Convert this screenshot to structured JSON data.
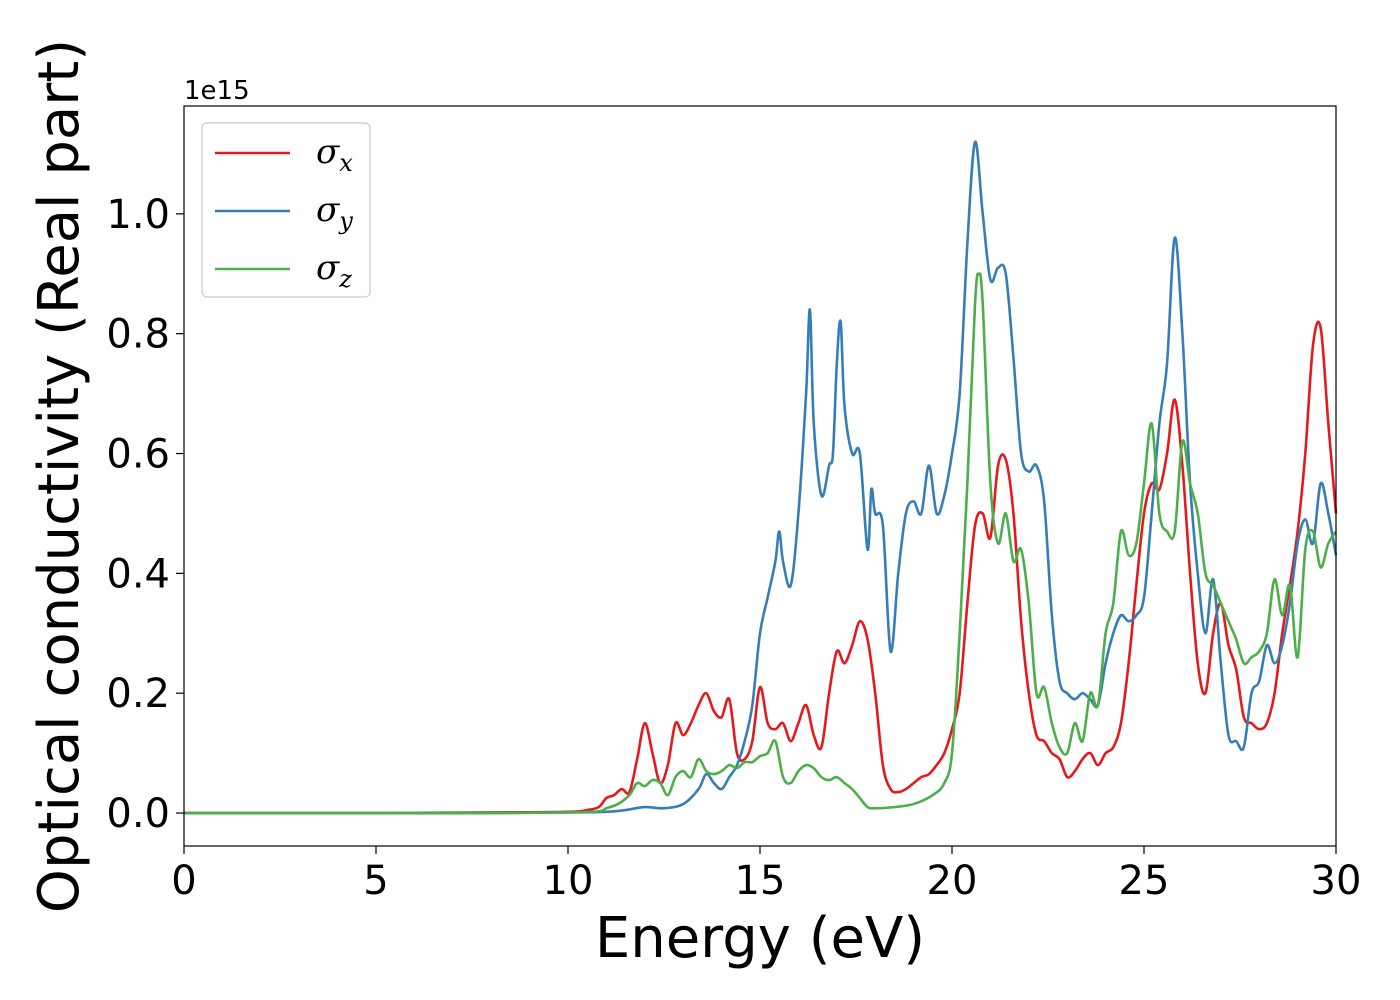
{
  "chart_data": {
    "type": "line",
    "title": "",
    "xlabel": "Energy (eV)",
    "ylabel": "Optical conductivity (Real part)",
    "y_offset_label": "1e15",
    "y_scale": 1000000000000000.0,
    "xlim": [
      0,
      30
    ],
    "ylim": [
      -0.055,
      1.18
    ],
    "x_ticks": [
      0,
      5,
      10,
      15,
      20,
      25,
      30
    ],
    "x_tick_labels": [
      "0",
      "5",
      "10",
      "15",
      "20",
      "25",
      "30"
    ],
    "y_ticks": [
      0.0,
      0.2,
      0.4,
      0.6,
      0.8,
      1.0
    ],
    "y_tick_labels": [
      "0.0",
      "0.2",
      "0.4",
      "0.6",
      "0.8",
      "1.0"
    ],
    "grid": false,
    "legend_position": "top-left",
    "series": [
      {
        "name": "σx",
        "symbol": "σ",
        "subscript": "x",
        "color": "#e41a1c",
        "x": [
          0,
          5,
          8,
          10,
          10.5,
          10.8,
          11.0,
          11.2,
          11.4,
          11.6,
          11.8,
          12.0,
          12.2,
          12.4,
          12.6,
          12.8,
          13.0,
          13.2,
          13.4,
          13.6,
          13.8,
          14.0,
          14.2,
          14.4,
          14.6,
          14.8,
          15.0,
          15.2,
          15.4,
          15.6,
          15.8,
          16.0,
          16.2,
          16.4,
          16.6,
          16.8,
          17.0,
          17.2,
          17.4,
          17.6,
          17.8,
          18.0,
          18.2,
          18.4,
          18.6,
          18.8,
          19.0,
          19.2,
          19.4,
          19.6,
          19.8,
          20.0,
          20.2,
          20.4,
          20.6,
          20.8,
          21.0,
          21.2,
          21.4,
          21.6,
          21.8,
          22.0,
          22.2,
          22.4,
          22.6,
          22.8,
          23.0,
          23.2,
          23.4,
          23.6,
          23.8,
          24.0,
          24.2,
          24.4,
          24.6,
          24.8,
          25.0,
          25.2,
          25.4,
          25.6,
          25.8,
          26.0,
          26.2,
          26.4,
          26.6,
          26.8,
          27.0,
          27.2,
          27.4,
          27.6,
          27.8,
          28.0,
          28.2,
          28.4,
          28.6,
          28.8,
          29.0,
          29.2,
          29.4,
          29.6,
          29.8,
          30.0
        ],
        "y": [
          0,
          0,
          0.001,
          0.002,
          0.005,
          0.01,
          0.025,
          0.03,
          0.04,
          0.035,
          0.09,
          0.15,
          0.1,
          0.05,
          0.08,
          0.15,
          0.13,
          0.15,
          0.18,
          0.2,
          0.17,
          0.16,
          0.19,
          0.1,
          0.09,
          0.12,
          0.21,
          0.15,
          0.14,
          0.15,
          0.12,
          0.15,
          0.18,
          0.13,
          0.11,
          0.2,
          0.27,
          0.25,
          0.28,
          0.32,
          0.29,
          0.2,
          0.08,
          0.04,
          0.035,
          0.04,
          0.05,
          0.06,
          0.065,
          0.08,
          0.1,
          0.14,
          0.2,
          0.35,
          0.48,
          0.5,
          0.46,
          0.58,
          0.59,
          0.5,
          0.32,
          0.2,
          0.13,
          0.12,
          0.1,
          0.09,
          0.06,
          0.07,
          0.09,
          0.1,
          0.08,
          0.1,
          0.11,
          0.15,
          0.25,
          0.38,
          0.5,
          0.55,
          0.54,
          0.6,
          0.69,
          0.58,
          0.4,
          0.25,
          0.2,
          0.3,
          0.35,
          0.28,
          0.24,
          0.16,
          0.15,
          0.14,
          0.15,
          0.2,
          0.3,
          0.38,
          0.47,
          0.6,
          0.78,
          0.81,
          0.65,
          0.5
        ]
      },
      {
        "name": "σy",
        "symbol": "σ",
        "subscript": "y",
        "color": "#377eb8",
        "x": [
          0,
          5,
          8,
          10,
          11.0,
          11.5,
          12.0,
          12.5,
          13.0,
          13.4,
          13.6,
          13.8,
          14.0,
          14.2,
          14.4,
          14.6,
          14.8,
          15.0,
          15.2,
          15.4,
          15.5,
          15.6,
          15.8,
          16.0,
          16.2,
          16.3,
          16.4,
          16.6,
          16.8,
          16.9,
          17.0,
          17.1,
          17.2,
          17.4,
          17.6,
          17.8,
          17.9,
          18.0,
          18.2,
          18.4,
          18.6,
          18.8,
          19.0,
          19.2,
          19.4,
          19.6,
          19.8,
          20.0,
          20.2,
          20.4,
          20.6,
          20.8,
          21.0,
          21.2,
          21.4,
          21.6,
          21.8,
          22.0,
          22.2,
          22.4,
          22.6,
          22.8,
          23.0,
          23.2,
          23.4,
          23.6,
          23.8,
          24.0,
          24.2,
          24.4,
          24.6,
          24.8,
          25.0,
          25.2,
          25.4,
          25.6,
          25.8,
          26.0,
          26.2,
          26.4,
          26.6,
          26.8,
          27.0,
          27.2,
          27.4,
          27.6,
          27.8,
          28.0,
          28.2,
          28.4,
          28.6,
          28.8,
          29.0,
          29.2,
          29.4,
          29.6,
          29.8,
          30.0
        ],
        "y": [
          0,
          0,
          0,
          0.001,
          0.002,
          0.005,
          0.01,
          0.008,
          0.015,
          0.04,
          0.065,
          0.05,
          0.04,
          0.06,
          0.08,
          0.12,
          0.18,
          0.3,
          0.36,
          0.42,
          0.47,
          0.42,
          0.38,
          0.5,
          0.7,
          0.84,
          0.65,
          0.53,
          0.58,
          0.6,
          0.75,
          0.82,
          0.68,
          0.6,
          0.6,
          0.44,
          0.54,
          0.5,
          0.48,
          0.27,
          0.4,
          0.5,
          0.52,
          0.5,
          0.58,
          0.5,
          0.53,
          0.6,
          0.7,
          0.95,
          1.12,
          1.0,
          0.89,
          0.91,
          0.9,
          0.76,
          0.6,
          0.57,
          0.58,
          0.52,
          0.33,
          0.22,
          0.2,
          0.19,
          0.2,
          0.19,
          0.18,
          0.25,
          0.3,
          0.33,
          0.32,
          0.33,
          0.36,
          0.5,
          0.65,
          0.75,
          0.96,
          0.8,
          0.55,
          0.4,
          0.3,
          0.39,
          0.25,
          0.13,
          0.12,
          0.11,
          0.2,
          0.22,
          0.28,
          0.25,
          0.28,
          0.35,
          0.45,
          0.49,
          0.45,
          0.55,
          0.5,
          0.43
        ]
      },
      {
        "name": "σz",
        "symbol": "σ",
        "subscript": "z",
        "color": "#4daf4a",
        "x": [
          0,
          5,
          8,
          10,
          10.8,
          11.0,
          11.3,
          11.6,
          11.8,
          12.0,
          12.2,
          12.4,
          12.6,
          12.8,
          13.0,
          13.2,
          13.4,
          13.6,
          13.8,
          14.0,
          14.2,
          14.4,
          14.6,
          14.8,
          15.0,
          15.2,
          15.4,
          15.6,
          15.8,
          16.0,
          16.2,
          16.4,
          16.6,
          16.8,
          17.0,
          17.2,
          17.4,
          17.6,
          17.8,
          18.0,
          18.5,
          19.0,
          19.5,
          19.8,
          20.0,
          20.2,
          20.4,
          20.6,
          20.7,
          20.8,
          21.0,
          21.2,
          21.4,
          21.6,
          21.8,
          22.0,
          22.2,
          22.4,
          22.6,
          22.8,
          23.0,
          23.2,
          23.4,
          23.6,
          23.8,
          24.0,
          24.2,
          24.4,
          24.6,
          24.8,
          25.0,
          25.2,
          25.4,
          25.6,
          25.8,
          26.0,
          26.2,
          26.4,
          26.6,
          26.8,
          27.0,
          27.2,
          27.4,
          27.6,
          27.8,
          28.0,
          28.2,
          28.4,
          28.6,
          28.8,
          29.0,
          29.2,
          29.4,
          29.6,
          29.8,
          30.0
        ],
        "y": [
          0,
          0,
          0,
          0.001,
          0.003,
          0.008,
          0.015,
          0.03,
          0.05,
          0.045,
          0.055,
          0.05,
          0.03,
          0.06,
          0.07,
          0.06,
          0.09,
          0.07,
          0.065,
          0.07,
          0.08,
          0.075,
          0.085,
          0.085,
          0.095,
          0.1,
          0.12,
          0.06,
          0.05,
          0.07,
          0.08,
          0.075,
          0.06,
          0.055,
          0.06,
          0.05,
          0.04,
          0.025,
          0.01,
          0.008,
          0.01,
          0.015,
          0.03,
          0.05,
          0.1,
          0.3,
          0.55,
          0.85,
          0.9,
          0.85,
          0.55,
          0.45,
          0.5,
          0.42,
          0.44,
          0.35,
          0.2,
          0.21,
          0.15,
          0.11,
          0.1,
          0.15,
          0.12,
          0.2,
          0.18,
          0.3,
          0.35,
          0.47,
          0.43,
          0.45,
          0.55,
          0.65,
          0.5,
          0.47,
          0.47,
          0.62,
          0.55,
          0.5,
          0.4,
          0.38,
          0.35,
          0.32,
          0.29,
          0.25,
          0.26,
          0.27,
          0.3,
          0.39,
          0.33,
          0.38,
          0.26,
          0.44,
          0.47,
          0.41,
          0.45,
          0.47
        ]
      }
    ]
  }
}
